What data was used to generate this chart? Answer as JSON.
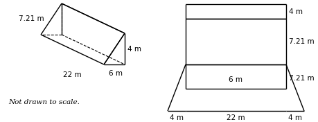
{
  "bg_color": "#ffffff",
  "prism_label_left": "7.21 m",
  "prism_label_right": "4 m",
  "prism_label_bottom": "22 m",
  "prism_label_slant": "6 m",
  "note_text": "Not drawn to scale.",
  "net_label_top": "4 m",
  "net_label_mid1": "7.21 m",
  "net_label_mid2": "7.21 m",
  "net_label_inner": "6 m",
  "net_label_bot_left": "4 m",
  "net_label_bot_mid": "22 m",
  "net_label_bot_right": "4 m"
}
